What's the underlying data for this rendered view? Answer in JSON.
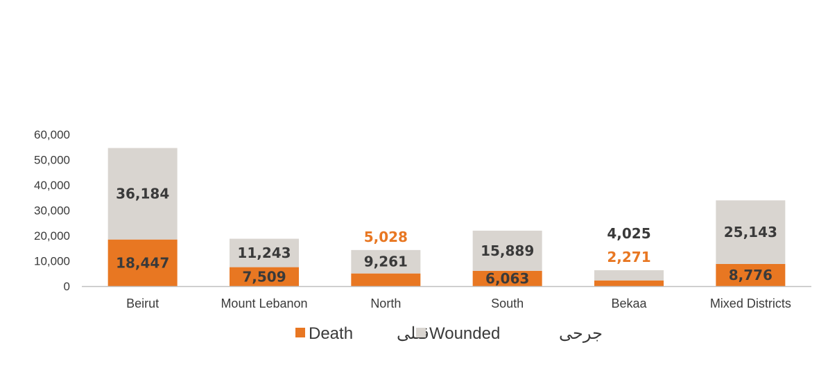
{
  "chart_data": {
    "type": "bar",
    "stacked": true,
    "categories": [
      "Beirut",
      "Mount Lebanon",
      "North",
      "South",
      "Bekaa",
      "Mixed Districts"
    ],
    "series": [
      {
        "name": "Death",
        "name_ar": "قتلى",
        "color": "#e87722",
        "values": [
          18447,
          7509,
          5028,
          6063,
          2271,
          8776
        ],
        "labels": [
          "18,447",
          "7,509",
          "5,028",
          "6,063",
          "2,271",
          "8,776"
        ]
      },
      {
        "name": "Wounded",
        "name_ar": "جرحى",
        "color": "#d9d5d0",
        "values": [
          36184,
          11243,
          9261,
          15889,
          4025,
          25143
        ],
        "labels": [
          "36,184",
          "11,243",
          "9,261",
          "15,889",
          "4,025",
          "25,143"
        ]
      }
    ],
    "yticks": [
      0,
      10000,
      20000,
      30000,
      40000,
      50000,
      60000
    ],
    "ytick_labels": [
      "0",
      "10,000",
      "20,000",
      "30,000",
      "40,000",
      "50,000",
      "60,000"
    ],
    "ylim": [
      0,
      60000
    ],
    "legend_position": "bottom",
    "grid": false
  }
}
